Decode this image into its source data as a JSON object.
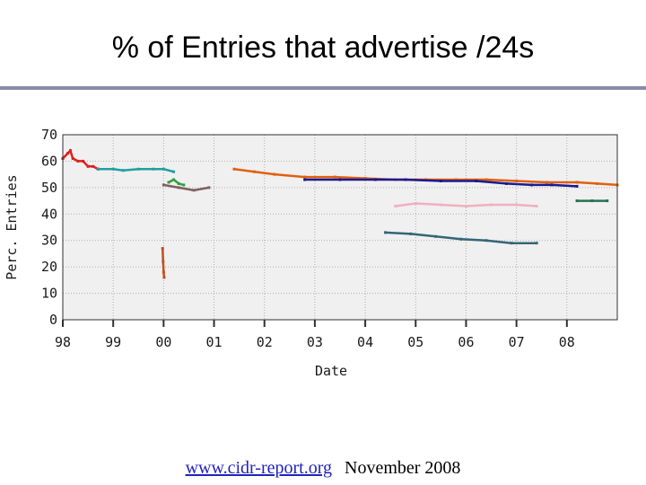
{
  "slide": {
    "title": "% of Entries that advertise /24s"
  },
  "footer": {
    "link_text": "www.cidr-report.org",
    "date_text": "November 2008"
  },
  "chart_data": {
    "type": "scatter",
    "title": "",
    "xlabel": "Date",
    "ylabel": "Perc. Entries",
    "xlim": [
      1998.0,
      2009.0
    ],
    "ylim": [
      0,
      70
    ],
    "x_ticks": [
      1998,
      1999,
      2000,
      2001,
      2002,
      2003,
      2004,
      2005,
      2006,
      2007,
      2008
    ],
    "x_tick_labels": [
      "98",
      "99",
      "00",
      "01",
      "02",
      "03",
      "04",
      "05",
      "06",
      "07",
      "08"
    ],
    "y_ticks": [
      0,
      10,
      20,
      30,
      40,
      50,
      60,
      70
    ],
    "y_tick_labels": [
      "0",
      "10",
      "20",
      "30",
      "40",
      "50",
      "60",
      "70"
    ],
    "grid": true,
    "colors": {
      "plot_bg": "#f0f0f0",
      "grid": "#b0b0b0",
      "axis": "#303030",
      "footer_link": "#2222bb",
      "title_rule": "#8a8aa8"
    },
    "series": [
      {
        "color": "#dd2020",
        "points": [
          [
            1998.0,
            61
          ],
          [
            1998.1,
            63
          ],
          [
            1998.15,
            64
          ],
          [
            1998.2,
            61
          ],
          [
            1998.3,
            60
          ],
          [
            1998.4,
            60
          ],
          [
            1998.5,
            58
          ],
          [
            1998.6,
            58
          ],
          [
            1998.7,
            57
          ]
        ]
      },
      {
        "color": "#20a0a0",
        "points": [
          [
            1998.7,
            57
          ],
          [
            1999.0,
            57
          ],
          [
            1999.2,
            56.5
          ],
          [
            1999.5,
            57
          ],
          [
            1999.8,
            57
          ],
          [
            2000.0,
            57
          ],
          [
            2000.2,
            56
          ]
        ]
      },
      {
        "color": "#e06010",
        "points": [
          [
            2001.4,
            57
          ],
          [
            2001.8,
            56
          ],
          [
            2002.2,
            55
          ],
          [
            2002.8,
            54
          ],
          [
            2003.4,
            54
          ],
          [
            2004.0,
            53.5
          ],
          [
            2004.6,
            53
          ],
          [
            2005.2,
            53
          ],
          [
            2005.8,
            53
          ],
          [
            2006.4,
            53
          ],
          [
            2007.0,
            52.5
          ],
          [
            2007.6,
            52
          ],
          [
            2008.2,
            52
          ],
          [
            2008.6,
            51.5
          ],
          [
            2009.0,
            51
          ]
        ]
      },
      {
        "color": "#1a1a90",
        "points": [
          [
            2002.8,
            53
          ],
          [
            2003.5,
            53
          ],
          [
            2004.2,
            53
          ],
          [
            2004.8,
            53
          ],
          [
            2005.5,
            52.5
          ],
          [
            2006.2,
            52.5
          ],
          [
            2006.8,
            51.5
          ],
          [
            2007.3,
            51
          ],
          [
            2007.7,
            51
          ],
          [
            2008.2,
            50.5
          ]
        ]
      },
      {
        "color": "#2a7050",
        "points": [
          [
            2008.2,
            45
          ],
          [
            2008.5,
            45
          ],
          [
            2008.8,
            45
          ]
        ]
      },
      {
        "color": "#336677",
        "points": [
          [
            2004.4,
            33
          ],
          [
            2004.9,
            32.5
          ],
          [
            2005.4,
            31.5
          ],
          [
            2005.9,
            30.5
          ],
          [
            2006.4,
            30
          ],
          [
            2006.9,
            29
          ],
          [
            2007.4,
            29
          ]
        ]
      },
      {
        "color": "#f0b0c0",
        "points": [
          [
            2004.6,
            43
          ],
          [
            2005.0,
            44
          ],
          [
            2005.5,
            43.5
          ],
          [
            2006.0,
            43
          ],
          [
            2006.5,
            43.5
          ],
          [
            2007.0,
            43.5
          ],
          [
            2007.4,
            43
          ]
        ]
      },
      {
        "color": "#30a040",
        "points": [
          [
            2000.1,
            52
          ],
          [
            2000.2,
            53
          ],
          [
            2000.3,
            51.5
          ],
          [
            2000.4,
            51
          ]
        ]
      },
      {
        "color": "#806060",
        "points": [
          [
            2000.0,
            51
          ],
          [
            2000.3,
            50
          ],
          [
            2000.6,
            49
          ],
          [
            2000.9,
            50
          ]
        ]
      },
      {
        "color": "#c05020",
        "points": [
          [
            1999.98,
            27
          ],
          [
            1999.99,
            22
          ],
          [
            2000.0,
            18
          ],
          [
            2000.01,
            16
          ]
        ]
      }
    ]
  }
}
